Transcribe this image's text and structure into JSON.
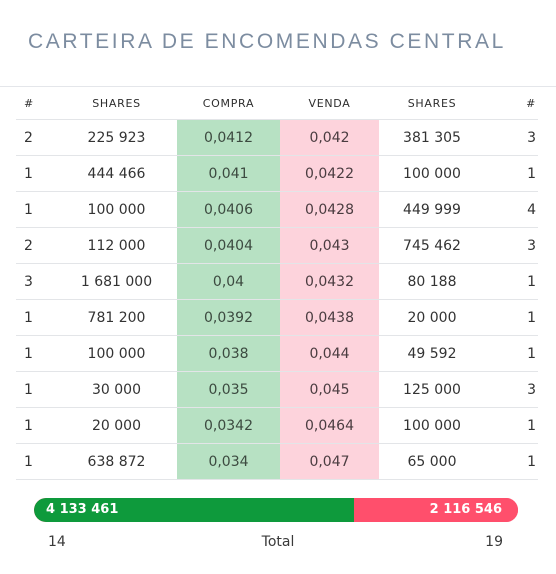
{
  "title": "CARTEIRA DE ENCOMENDAS CENTRAL",
  "columns": {
    "buy_count": "#",
    "buy_shares": "SHARES",
    "buy_price": "COMPRA",
    "sell_price": "VENDA",
    "sell_shares": "SHARES",
    "sell_count": "#"
  },
  "rows": [
    {
      "buy_count": "2",
      "buy_shares": "225 923",
      "buy_price": "0,0412",
      "sell_price": "0,042",
      "sell_shares": "381 305",
      "sell_count": "3"
    },
    {
      "buy_count": "1",
      "buy_shares": "444 466",
      "buy_price": "0,041",
      "sell_price": "0,0422",
      "sell_shares": "100 000",
      "sell_count": "1"
    },
    {
      "buy_count": "1",
      "buy_shares": "100 000",
      "buy_price": "0,0406",
      "sell_price": "0,0428",
      "sell_shares": "449 999",
      "sell_count": "4"
    },
    {
      "buy_count": "2",
      "buy_shares": "112 000",
      "buy_price": "0,0404",
      "sell_price": "0,043",
      "sell_shares": "745 462",
      "sell_count": "3"
    },
    {
      "buy_count": "3",
      "buy_shares": "1 681 000",
      "buy_price": "0,04",
      "sell_price": "0,0432",
      "sell_shares": "80 188",
      "sell_count": "1"
    },
    {
      "buy_count": "1",
      "buy_shares": "781 200",
      "buy_price": "0,0392",
      "sell_price": "0,0438",
      "sell_shares": "20 000",
      "sell_count": "1"
    },
    {
      "buy_count": "1",
      "buy_shares": "100 000",
      "buy_price": "0,038",
      "sell_price": "0,044",
      "sell_shares": "49 592",
      "sell_count": "1"
    },
    {
      "buy_count": "1",
      "buy_shares": "30 000",
      "buy_price": "0,035",
      "sell_price": "0,045",
      "sell_shares": "125 000",
      "sell_count": "3"
    },
    {
      "buy_count": "1",
      "buy_shares": "20 000",
      "buy_price": "0,0342",
      "sell_price": "0,0464",
      "sell_shares": "100 000",
      "sell_count": "1"
    },
    {
      "buy_count": "1",
      "buy_shares": "638 872",
      "buy_price": "0,034",
      "sell_price": "0,047",
      "sell_shares": "65 000",
      "sell_count": "1"
    }
  ],
  "totals_bar": {
    "buy_total": "4 133 461",
    "sell_total": "2 116 546",
    "buy_share": 0.6614,
    "buy_color": "#0e9a3c",
    "sell_color": "#ff4f6c"
  },
  "footer": {
    "buy_orders": "14",
    "label": "Total",
    "sell_orders": "19"
  },
  "colors": {
    "title": "#7c8ca0",
    "buy_price_bg": "#b7e1c3",
    "sell_price_bg": "#fdd3dc"
  }
}
